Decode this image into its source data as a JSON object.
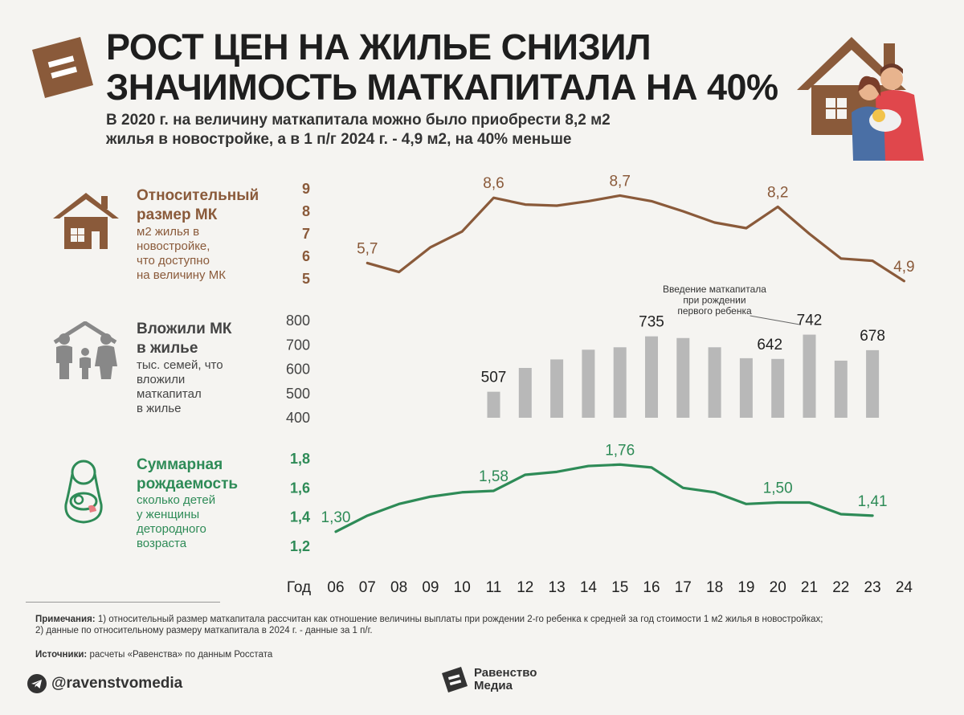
{
  "header": {
    "title_line1": "Рост цен на жилье снизил",
    "title_line2": "значимость маткапитала на 40%",
    "subtitle_line1": "В 2020 г. на величину маткапитала можно было приобрести 8,2 м2",
    "subtitle_line2": "жилья в новостройке, а в 1 п/г 2024 г. - 4,9 м2, на 40% меньше"
  },
  "sections": {
    "relative_size": {
      "title_line1": "Относительный",
      "title_line2": "размер МК",
      "desc_lines": [
        "м2 жилья в",
        "новостройке,",
        "что доступно",
        "на величину МК"
      ],
      "icon": "house-icon"
    },
    "invested": {
      "title_line1": "Вложили МК",
      "title_line2": "в жилье",
      "desc_lines": [
        "тыс. семей, что",
        "вложили",
        "маткапитал",
        "в жилье"
      ],
      "icon": "family-icon"
    },
    "fertility": {
      "title_line1": "Суммарная",
      "title_line2": "рождаемость",
      "desc_lines": [
        "сколько детей",
        "у женщины",
        "детородного",
        "возраста"
      ],
      "icon": "mother-child-icon"
    }
  },
  "colors": {
    "brown": "#8a5a3a",
    "line_brown": "#8a5a3a",
    "gray_bar": "#b8b8b8",
    "green": "#2e8b57",
    "badge": "#8a5a3a"
  },
  "chart_data": [
    {
      "type": "line",
      "title": "Относительный размер МК",
      "ylabel": "м2 жилья в новостройке, что доступно на величину МК",
      "x": [
        "07",
        "08",
        "09",
        "10",
        "11",
        "12",
        "13",
        "14",
        "15",
        "16",
        "17",
        "18",
        "19",
        "20",
        "21",
        "22",
        "23",
        "24"
      ],
      "values": [
        5.7,
        5.3,
        6.4,
        7.1,
        8.6,
        8.3,
        8.25,
        8.45,
        8.7,
        8.45,
        8.0,
        7.5,
        7.25,
        8.2,
        7.0,
        5.9,
        5.8,
        4.9
      ],
      "yticks": [
        "5",
        "6",
        "7",
        "8",
        "9"
      ],
      "ylim": [
        5,
        9
      ],
      "labels": [
        {
          "x": "07",
          "text": "5,7"
        },
        {
          "x": "11",
          "text": "8,6"
        },
        {
          "x": "15",
          "text": "8,7"
        },
        {
          "x": "20",
          "text": "8,2"
        },
        {
          "x": "24",
          "text": "4,9"
        }
      ]
    },
    {
      "type": "bar",
      "title": "Вложили МК в жилье",
      "ylabel": "тыс. семей, что вложили маткапитал в жилье",
      "categories": [
        "11",
        "12",
        "13",
        "14",
        "15",
        "16",
        "17",
        "18",
        "19",
        "20",
        "21",
        "22",
        "23"
      ],
      "values": [
        507,
        605,
        640,
        680,
        690,
        735,
        728,
        690,
        645,
        642,
        742,
        635,
        678
      ],
      "yticks": [
        "400",
        "500",
        "600",
        "700",
        "800"
      ],
      "ylim": [
        400,
        800
      ],
      "labels": [
        {
          "x": "11",
          "text": "507"
        },
        {
          "x": "16",
          "text": "735"
        },
        {
          "x": "20",
          "text": "642"
        },
        {
          "x": "21",
          "text": "742"
        },
        {
          "x": "23",
          "text": "678"
        }
      ],
      "annotation": {
        "x": "21",
        "lines": [
          "Введение маткапитала",
          "при рождении",
          "первого ребенка"
        ]
      }
    },
    {
      "type": "line",
      "title": "Суммарная рождаемость",
      "ylabel": "сколько детей у женщины детородного возраста",
      "x": [
        "06",
        "07",
        "08",
        "09",
        "10",
        "11",
        "12",
        "13",
        "14",
        "15",
        "16",
        "17",
        "18",
        "19",
        "20",
        "21",
        "22",
        "23"
      ],
      "values": [
        1.3,
        1.41,
        1.49,
        1.54,
        1.57,
        1.58,
        1.69,
        1.71,
        1.75,
        1.76,
        1.74,
        1.6,
        1.57,
        1.49,
        1.5,
        1.5,
        1.42,
        1.41
      ],
      "yticks": [
        "1,2",
        "1,4",
        "1,6",
        "1,8"
      ],
      "ylim": [
        1.2,
        1.8
      ],
      "labels": [
        {
          "x": "06",
          "text": "1,30"
        },
        {
          "x": "11",
          "text": "1,58"
        },
        {
          "x": "15",
          "text": "1,76"
        },
        {
          "x": "20",
          "text": "1,50"
        },
        {
          "x": "23",
          "text": "1,41"
        }
      ]
    }
  ],
  "x_axis": {
    "label": "Год",
    "years": [
      "06",
      "07",
      "08",
      "09",
      "10",
      "11",
      "12",
      "13",
      "14",
      "15",
      "16",
      "17",
      "18",
      "19",
      "20",
      "21",
      "22",
      "23",
      "24"
    ]
  },
  "footer": {
    "notes_label": "Примечания:",
    "notes_text": "1) относительный размер маткапитала рассчитан как отношение величины выплаты при рождении 2-го ребенка к средней за год стоимости 1 м2 жилья в новостройках;",
    "notes_text2": "2) данные по относительному размеру маткапитала в 2024 г. - данные за 1 п/г.",
    "sources_label": "Источники:",
    "sources_text": "расчеты «Равенства» по данным Росстата",
    "social_handle": "@ravenstvomedia",
    "brand_line1": "Равенство",
    "brand_line2": "Медиа"
  }
}
